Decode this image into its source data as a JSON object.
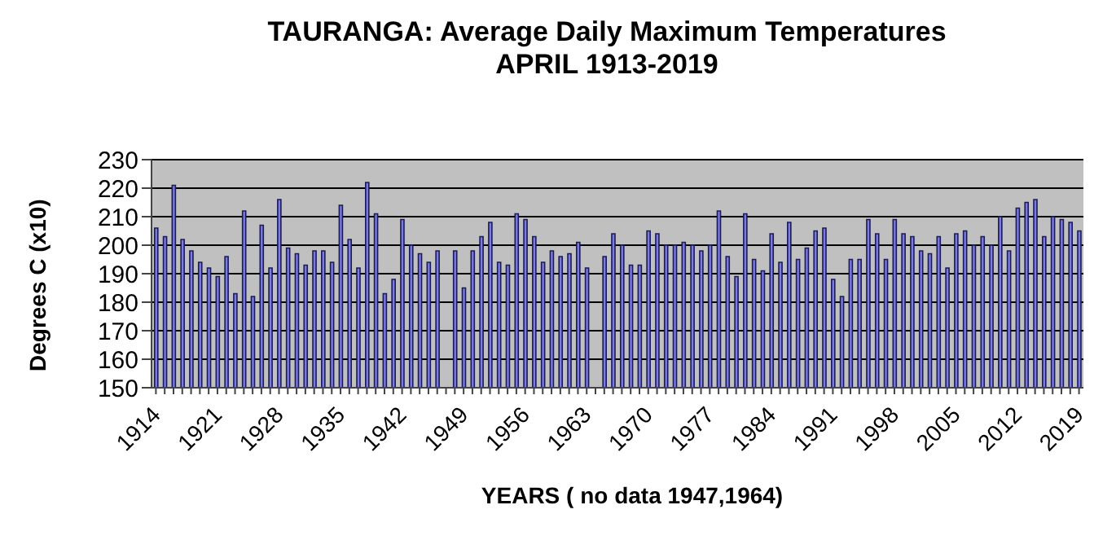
{
  "chart_data": {
    "type": "bar",
    "title": "TAURANGA: Average Daily Maximum  Temperatures\nAPRIL 1913-2019",
    "xlabel": "YEARS  ( no data 1947,1964)",
    "ylabel": "Degrees C (x10)",
    "categories": [
      "1914",
      null,
      null,
      null,
      null,
      null,
      null,
      "1921",
      null,
      null,
      null,
      null,
      null,
      null,
      "1928",
      null,
      null,
      null,
      null,
      null,
      null,
      "1935",
      null,
      null,
      null,
      null,
      null,
      null,
      "1942",
      null,
      null,
      null,
      null,
      null,
      null,
      "1949",
      null,
      null,
      null,
      null,
      null,
      null,
      "1956",
      null,
      null,
      null,
      null,
      null,
      null,
      "1963",
      null,
      null,
      null,
      null,
      null,
      null,
      "1970",
      null,
      null,
      null,
      null,
      null,
      null,
      "1977",
      null,
      null,
      null,
      null,
      null,
      null,
      "1984",
      null,
      null,
      null,
      null,
      null,
      null,
      "1991",
      null,
      null,
      null,
      null,
      null,
      null,
      "1998",
      null,
      null,
      null,
      null,
      null,
      null,
      "2005",
      null,
      null,
      null,
      null,
      null,
      null,
      "2012",
      null,
      null,
      null,
      null,
      null,
      null,
      "2019"
    ],
    "values": [
      206,
      203,
      221,
      202,
      198,
      194,
      192,
      189,
      196,
      183,
      212,
      182,
      207,
      192,
      216,
      199,
      197,
      193,
      198,
      198,
      194,
      214,
      202,
      192,
      222,
      211,
      183,
      188,
      209,
      200,
      197,
      194,
      198,
      null,
      198,
      185,
      198,
      203,
      208,
      194,
      193,
      211,
      209,
      203,
      194,
      198,
      196,
      197,
      201,
      192,
      null,
      196,
      204,
      200,
      193,
      193,
      205,
      204,
      200,
      200,
      201,
      200,
      198,
      200,
      212,
      196,
      189,
      211,
      195,
      191,
      204,
      194,
      208,
      195,
      199,
      205,
      206,
      188,
      182,
      195,
      195,
      209,
      204,
      195,
      209,
      204,
      203,
      198,
      197,
      203,
      192,
      204,
      205,
      200,
      203,
      200,
      210,
      198,
      213,
      215,
      216,
      203,
      210,
      209,
      208,
      205
    ],
    "color": "#7b7be0",
    "ylim": [
      150,
      230
    ],
    "yticks": [
      150,
      160,
      170,
      180,
      190,
      200,
      210,
      220,
      230
    ],
    "grid": "y"
  }
}
